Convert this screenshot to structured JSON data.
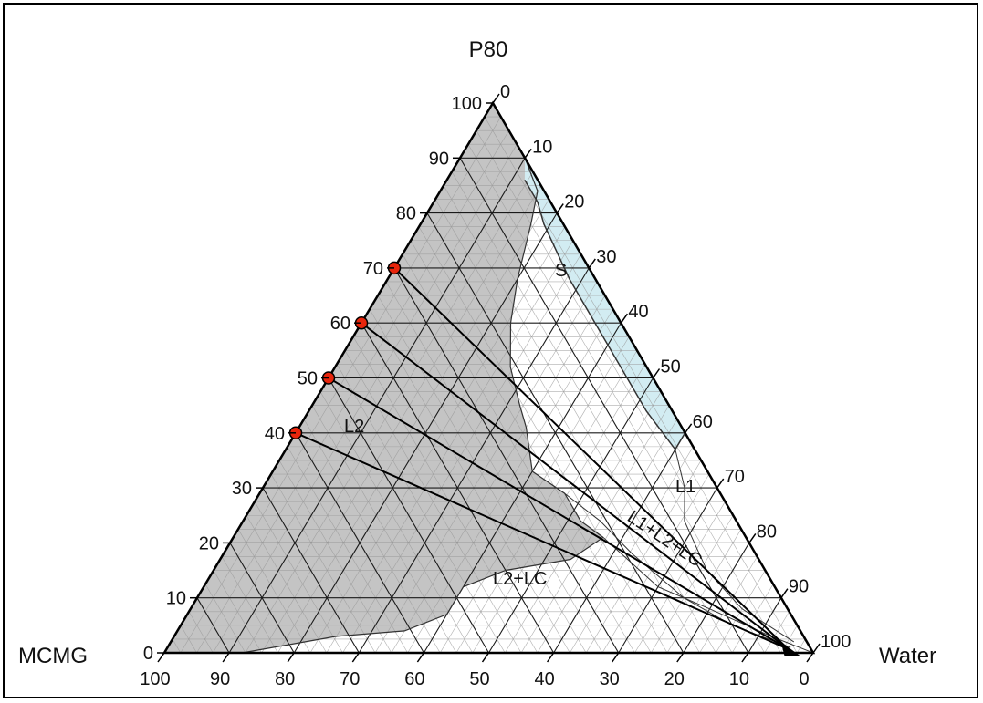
{
  "chart_data": {
    "type": "ternary",
    "vertices": {
      "top": "P80",
      "left": "MCMG",
      "right": "Water"
    },
    "ticks": {
      "left_axis": [
        "0",
        "10",
        "20",
        "30",
        "40",
        "50",
        "60",
        "70",
        "80",
        "90",
        "100"
      ],
      "right_axis": [
        "0",
        "10",
        "20",
        "30",
        "40",
        "50",
        "60",
        "70",
        "80",
        "90",
        "100"
      ],
      "bottom_axis": [
        "100",
        "90",
        "80",
        "70",
        "60",
        "50",
        "40",
        "30",
        "20",
        "10",
        "0"
      ]
    },
    "regions": {
      "L2": {
        "label": "L2",
        "fill": "#c4c4c4"
      },
      "S": {
        "label": "S",
        "fill": "#d2ecf2"
      },
      "L1": {
        "label": "L1",
        "fill": "#ffffff"
      },
      "L1L2LC": {
        "label": "L1+L2+LC",
        "fill": "#ffffff"
      },
      "L2LC": {
        "label": "L2+LC",
        "fill": "#ffffff"
      }
    },
    "dilution_lines": [
      {
        "start_P80": 70,
        "start_MCMG": 30
      },
      {
        "start_P80": 60,
        "start_MCMG": 40
      },
      {
        "start_P80": 50,
        "start_MCMG": 50
      },
      {
        "start_P80": 40,
        "start_MCMG": 60
      }
    ],
    "dilution_end": {
      "Water": 100
    },
    "colors": {
      "marker": "#e8250c",
      "grid": "#1a1a1a",
      "fine_grid": "#9a9a9a"
    }
  }
}
